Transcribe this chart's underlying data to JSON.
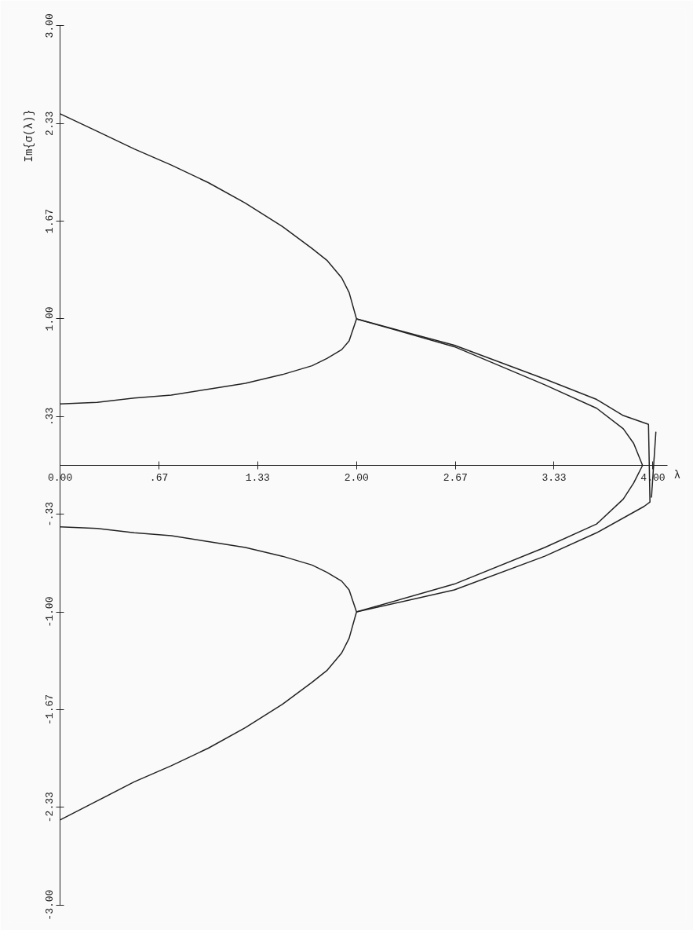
{
  "chart_data": {
    "type": "line",
    "xlabel": "λ",
    "ylabel": "Im{σ(λ)}",
    "xlim": [
      0,
      4.1
    ],
    "ylim": [
      -3,
      3
    ],
    "xticks": [
      {
        "value": 0,
        "label": "0.00"
      },
      {
        "value": 0.667,
        "label": ".67"
      },
      {
        "value": 1.333,
        "label": "1.33"
      },
      {
        "value": 2,
        "label": "2.00"
      },
      {
        "value": 2.667,
        "label": "2.67"
      },
      {
        "value": 3.333,
        "label": "3.33"
      },
      {
        "value": 4,
        "label": "4.00"
      }
    ],
    "yticks": [
      {
        "value": -3,
        "label": "-3.00"
      },
      {
        "value": -2.333,
        "label": "-2.33"
      },
      {
        "value": -1.667,
        "label": "-1.67"
      },
      {
        "value": -1,
        "label": "-1.00"
      },
      {
        "value": -0.333,
        "label": "-.33"
      },
      {
        "value": 0.333,
        "label": ".33"
      },
      {
        "value": 1,
        "label": "1.00"
      },
      {
        "value": 1.667,
        "label": "1.67"
      },
      {
        "value": 2.333,
        "label": "2.33"
      },
      {
        "value": 3,
        "label": "3.00"
      }
    ],
    "grid": false,
    "series": [
      {
        "color": "#222222",
        "x": [
          0,
          0.25,
          0.5,
          0.75,
          1.0,
          1.25,
          1.5,
          1.7,
          1.8,
          1.9,
          1.95,
          2.0,
          1.95,
          1.9,
          1.8,
          1.7,
          1.5,
          1.25,
          1.0,
          0.75,
          0.5,
          0.25,
          0
        ],
        "values": [
          2.4,
          2.28,
          2.16,
          2.05,
          1.93,
          1.79,
          1.63,
          1.48,
          1.4,
          1.28,
          1.18,
          1.0,
          0.85,
          0.79,
          0.73,
          0.68,
          0.62,
          0.56,
          0.52,
          0.48,
          0.46,
          0.43,
          0.42
        ]
      },
      {
        "color": "#222222",
        "x": [
          0,
          0.25,
          0.5,
          0.75,
          1.0,
          1.25,
          1.5,
          1.7,
          1.8,
          1.9,
          1.95,
          2.0,
          1.95,
          1.9,
          1.8,
          1.7,
          1.5,
          1.25,
          1.0,
          0.75,
          0.5,
          0.25,
          0
        ],
        "values": [
          -2.42,
          -2.29,
          -2.16,
          -2.05,
          -1.93,
          -1.79,
          -1.63,
          -1.48,
          -1.4,
          -1.28,
          -1.18,
          -1.0,
          -0.85,
          -0.79,
          -0.73,
          -0.68,
          -0.62,
          -0.56,
          -0.52,
          -0.48,
          -0.46,
          -0.43,
          -0.42
        ]
      },
      {
        "color": "#222222",
        "x": [
          2.0,
          2.66,
          3.27,
          3.62,
          3.8,
          3.97,
          3.98,
          3.94,
          3.62,
          3.27,
          2.66,
          2.0
        ],
        "values": [
          1.0,
          0.82,
          0.59,
          0.45,
          0.34,
          0.28,
          -0.25,
          -0.28,
          -0.46,
          -0.62,
          -0.85,
          -1.0
        ]
      },
      {
        "color": "#222222",
        "x": [
          2.0,
          2.66,
          3.27,
          3.62,
          3.8,
          3.87,
          3.93,
          3.87,
          3.8,
          3.62,
          3.27,
          2.66,
          2.0
        ],
        "values": [
          1.0,
          0.81,
          0.55,
          0.39,
          0.25,
          0.15,
          0.0,
          -0.12,
          -0.23,
          -0.4,
          -0.56,
          -0.81,
          -1.0
        ]
      },
      {
        "color": "#222222",
        "x": [
          4.02,
          3.99
        ],
        "values": [
          0.23,
          -0.22
        ]
      }
    ]
  }
}
